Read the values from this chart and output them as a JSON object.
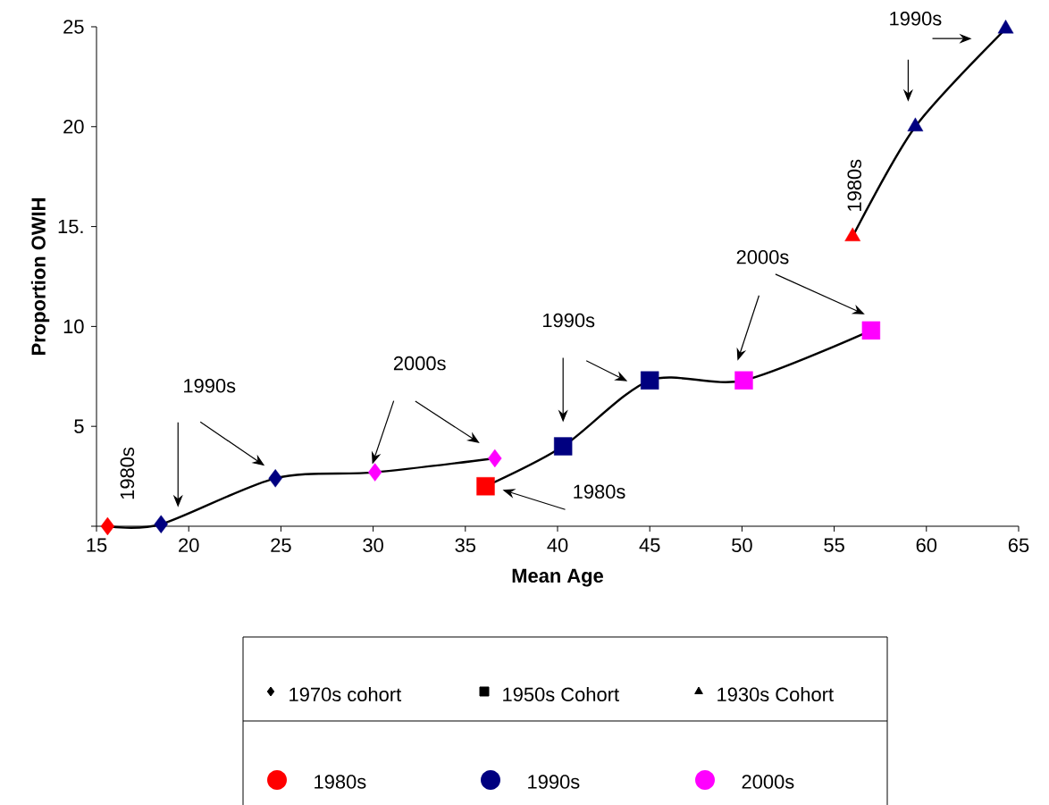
{
  "chart_data": {
    "type": "line",
    "xlabel": "Mean Age",
    "ylabel": "Proportion OWIH",
    "xlim": [
      15,
      65
    ],
    "xticks": [
      15,
      20,
      25,
      30,
      35,
      40,
      45,
      50,
      55,
      60,
      65
    ],
    "ylim": [
      0,
      25
    ],
    "yticks": [
      {
        "value": 0,
        "label": null
      },
      5,
      10,
      {
        "value": 15,
        "label": "15."
      },
      20,
      25
    ],
    "legend": "bottom",
    "grid": false,
    "series": [
      {
        "name": "1970s cohort",
        "color": "#000000",
        "marker": "diamond",
        "x": [
          15.6,
          18.5,
          24.7,
          30.1,
          36.6
        ],
        "values": [
          0,
          0.1,
          2.4,
          2.7,
          3.4
        ],
        "colors": [
          "#ff0000",
          "#000080",
          "#000080",
          "#ff00ff",
          "#ff00ff"
        ]
      },
      {
        "name": "1950s Cohort",
        "color": "#000000",
        "marker": "square",
        "x": [
          36.1,
          40.3,
          45.0,
          50.1,
          57.0
        ],
        "values": [
          2.0,
          4.0,
          7.3,
          7.3,
          9.8
        ],
        "colors": [
          "#ff0000",
          "#000080",
          "#000080",
          "#ff00ff",
          "#ff00ff"
        ]
      },
      {
        "name": "1930s Cohort",
        "color": "#000000",
        "marker": "triangle",
        "x": [
          56.0,
          59.4,
          64.3
        ],
        "values": [
          14.5,
          20.0,
          24.9
        ],
        "colors": [
          "#ff0000",
          "#000080",
          "#000080"
        ]
      },
      {
        "name": "1980s",
        "type": "scatter",
        "color": "#ff0000",
        "marker": "circle"
      },
      {
        "name": "1990s",
        "type": "scatter",
        "color": "#000080",
        "marker": "circle"
      },
      {
        "name": "2000s",
        "type": "scatter",
        "color": "#ff00ff",
        "marker": "circle"
      }
    ],
    "annotations": [
      {
        "text": "1980s",
        "x": 15.6,
        "y": 0
      },
      "1990s",
      "2000s",
      "1990s",
      "1980s",
      "2000s",
      {
        "text": "1980s",
        "x": 56.0,
        "y": 14.5
      },
      "1990s"
    ]
  }
}
